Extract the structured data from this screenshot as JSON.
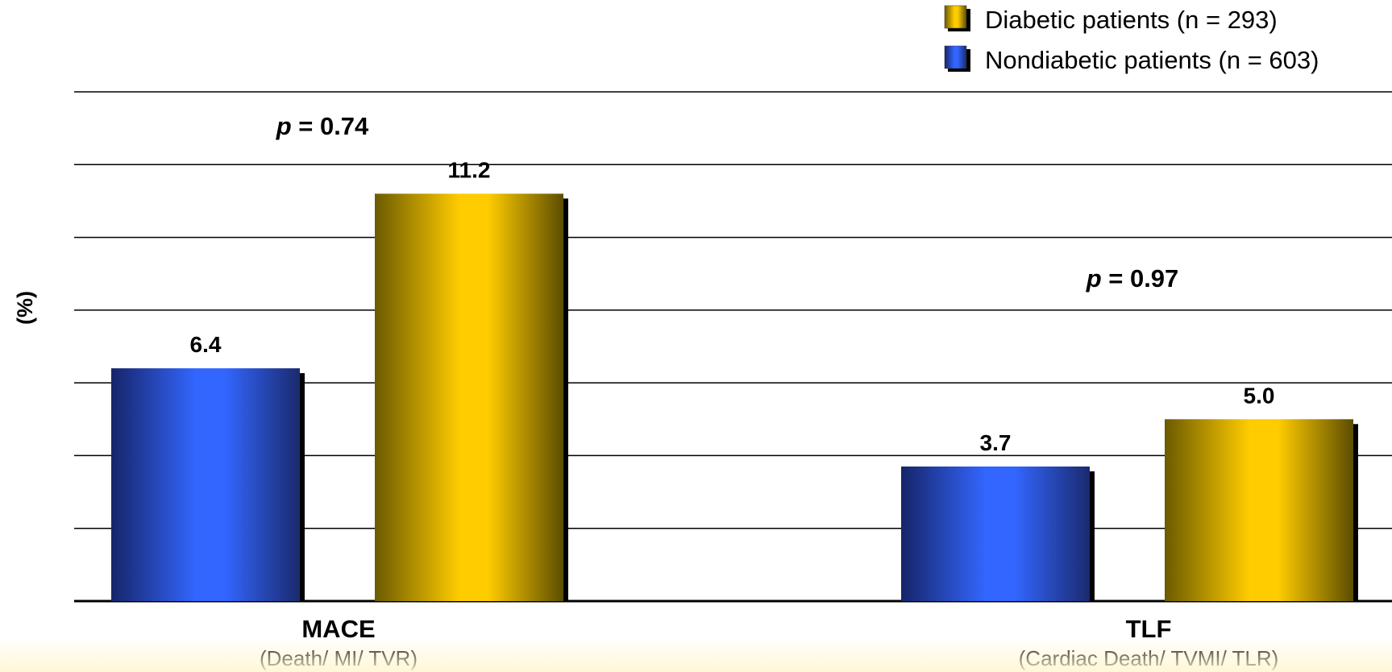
{
  "chart_data": {
    "type": "bar",
    "title": "",
    "ylabel": "(%)",
    "xlabel": "",
    "ylim": [
      0,
      14
    ],
    "y_gridlines": [
      2,
      4,
      6,
      8,
      10,
      12,
      14
    ],
    "grid": true,
    "legend_position": "top-right",
    "categories": [
      {
        "label": "MACE",
        "sublabel": "(Death/ MI/ TVR)",
        "p_value_label": "p",
        "p_value_text": " = 0.74"
      },
      {
        "label": "TLF",
        "sublabel": "(Cardiac Death/ TVMI/ TLR)",
        "p_value_label": "p",
        "p_value_text": " = 0.97"
      }
    ],
    "series": [
      {
        "name": "Nondiabetic patients (n = 603)",
        "values": [
          6.4,
          3.7
        ],
        "labels": [
          "6.4",
          "3.7"
        ],
        "color": "#3366ff"
      },
      {
        "name": "Diabetic patients (n = 293)",
        "values": [
          11.2,
          5.0
        ],
        "labels": [
          "11.2",
          "5.0"
        ],
        "color": "#ffcc00"
      }
    ],
    "legend_order": [
      1,
      0
    ]
  },
  "colors": {
    "blue_dark": "#1a2a6e",
    "blue_light": "#3366ff",
    "gold_dark": "#6b5a00",
    "gold_light": "#ffcc00",
    "gridline": "#000000",
    "text": "#000000"
  }
}
